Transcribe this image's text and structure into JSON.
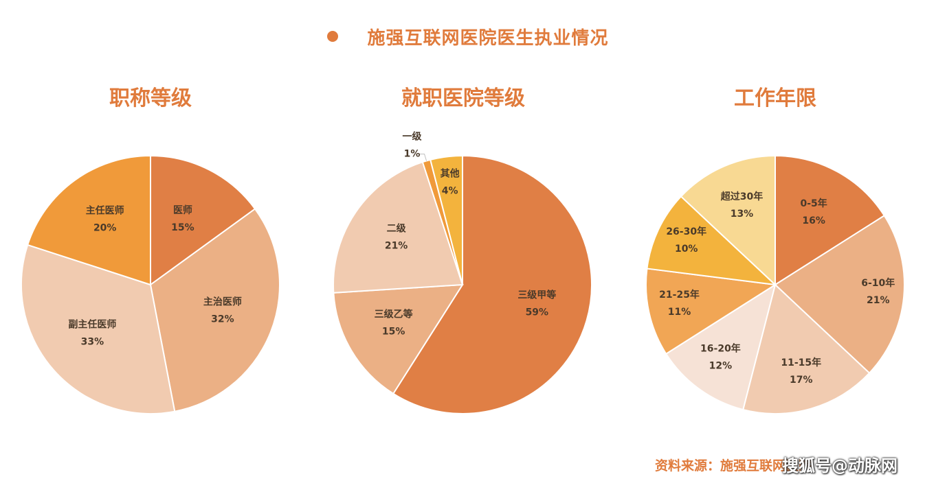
{
  "header": {
    "title": "施强互联网医院医生执业情况"
  },
  "source_text": "资料来源：施强互联网医院",
  "watermark_text": "搜狐号@动脉网",
  "colors": {
    "accent": "#E07B3C"
  },
  "chart_data": [
    {
      "type": "pie",
      "title": "职称等级",
      "slices": [
        {
          "label": "医师",
          "value": 15,
          "pct": "15%",
          "color": "#E07F45"
        },
        {
          "label": "主治医师",
          "value": 32,
          "pct": "32%",
          "color": "#EBB085"
        },
        {
          "label": "副主任医师",
          "value": 33,
          "pct": "33%",
          "color": "#F1CBB0"
        },
        {
          "label": "主任医师",
          "value": 20,
          "pct": "20%",
          "color": "#F09A3A"
        }
      ]
    },
    {
      "type": "pie",
      "title": "就职医院等级",
      "slices": [
        {
          "label": "三级甲等",
          "value": 59,
          "pct": "59%",
          "color": "#E07F45"
        },
        {
          "label": "三级乙等",
          "value": 15,
          "pct": "15%",
          "color": "#EBB085"
        },
        {
          "label": "二级",
          "value": 21,
          "pct": "21%",
          "color": "#F1CBB0"
        },
        {
          "label": "一级",
          "value": 1,
          "pct": "1%",
          "color": "#F09A3A"
        },
        {
          "label": "其他",
          "value": 4,
          "pct": "4%",
          "color": "#F3B33D"
        }
      ]
    },
    {
      "type": "pie",
      "title": "工作年限",
      "slices": [
        {
          "label": "0-5年",
          "value": 16,
          "pct": "16%",
          "color": "#E07F45"
        },
        {
          "label": "6-10年",
          "value": 21,
          "pct": "21%",
          "color": "#EBB085"
        },
        {
          "label": "11-15年",
          "value": 17,
          "pct": "17%",
          "color": "#F1CBB0"
        },
        {
          "label": "16-20年",
          "value": 12,
          "pct": "12%",
          "color": "#F6E2D6"
        },
        {
          "label": "21-25年",
          "value": 11,
          "pct": "11%",
          "color": "#F1A655"
        },
        {
          "label": "26-30年",
          "value": 10,
          "pct": "10%",
          "color": "#F3B33D"
        },
        {
          "label": "超过30年",
          "value": 13,
          "pct": "13%",
          "color": "#F8D993"
        }
      ]
    }
  ]
}
